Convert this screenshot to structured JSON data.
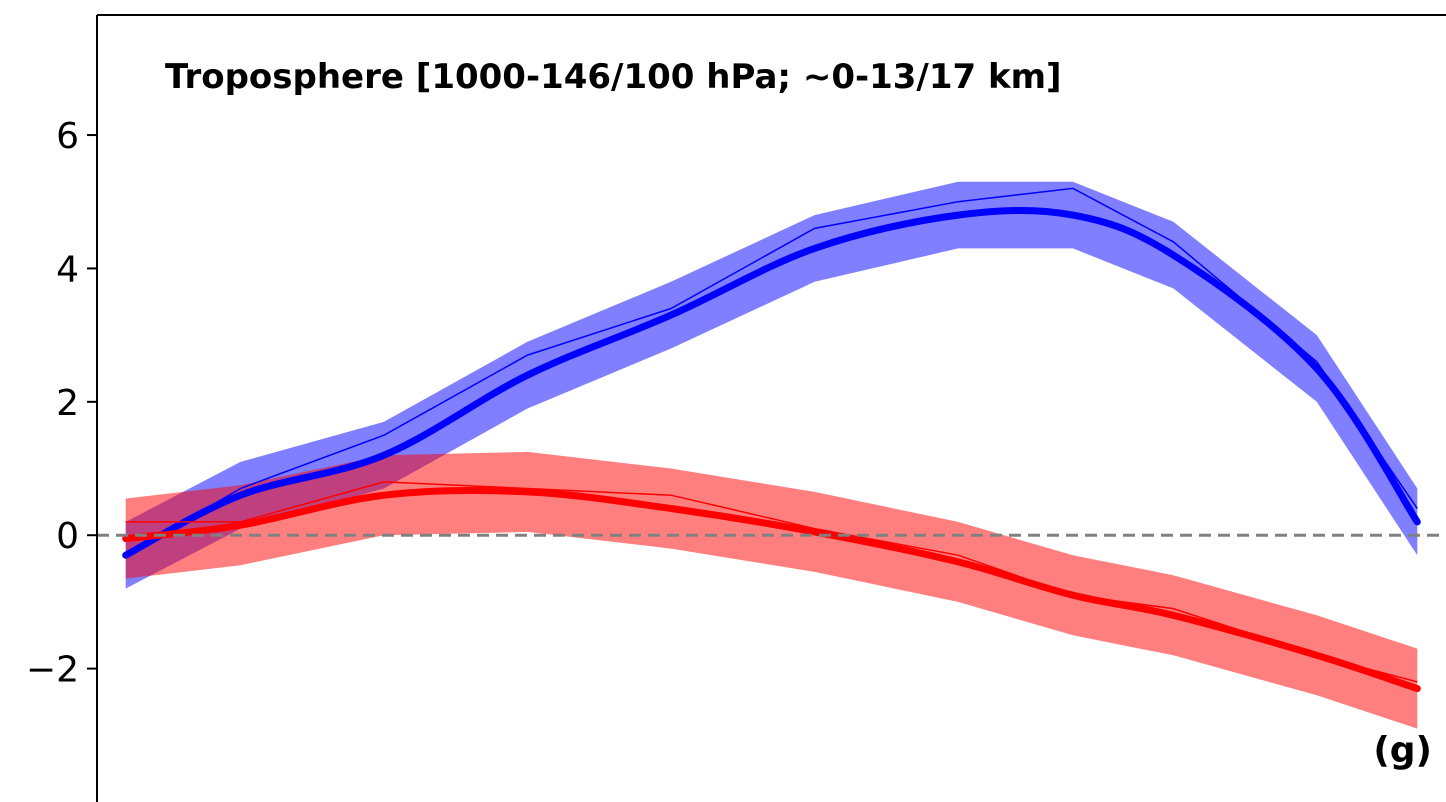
{
  "chart_data": {
    "type": "line",
    "title": "Troposphere [1000-146/100 hPa; ~0-13/17 km]",
    "panel_label": "(g)",
    "xlabel": "",
    "ylabel": "",
    "xlim": [
      0,
      94
    ],
    "ylim": [
      -4,
      7.8
    ],
    "yticks": [
      -2,
      0,
      2,
      4,
      6
    ],
    "ytick_labels": [
      "−2",
      "0",
      "2",
      "4",
      "6"
    ],
    "reference_line": {
      "y": 0,
      "style": "dashed",
      "color": "#808080"
    },
    "grid": false,
    "series": [
      {
        "color": "#0000ff",
        "x": [
          2,
          10,
          20,
          30,
          40,
          50,
          60,
          68,
          75,
          85,
          92
        ],
        "smooth": [
          -0.3,
          0.6,
          1.2,
          2.4,
          3.3,
          4.3,
          4.8,
          4.8,
          4.2,
          2.5,
          0.2
        ],
        "noisy": [
          -0.3,
          0.7,
          1.5,
          2.7,
          3.4,
          4.6,
          5.0,
          5.2,
          4.4,
          2.6,
          0.4
        ],
        "band_half_width": 0.5
      },
      {
        "color": "#ff0000",
        "x": [
          2,
          10,
          20,
          30,
          40,
          50,
          60,
          68,
          75,
          85,
          92
        ],
        "smooth": [
          -0.05,
          0.15,
          0.6,
          0.65,
          0.4,
          0.05,
          -0.4,
          -0.9,
          -1.2,
          -1.8,
          -2.3
        ],
        "noisy": [
          0.2,
          0.2,
          0.8,
          0.7,
          0.6,
          0.1,
          -0.3,
          -0.9,
          -1.1,
          -1.8,
          -2.2
        ],
        "band_half_width": 0.6
      }
    ]
  }
}
